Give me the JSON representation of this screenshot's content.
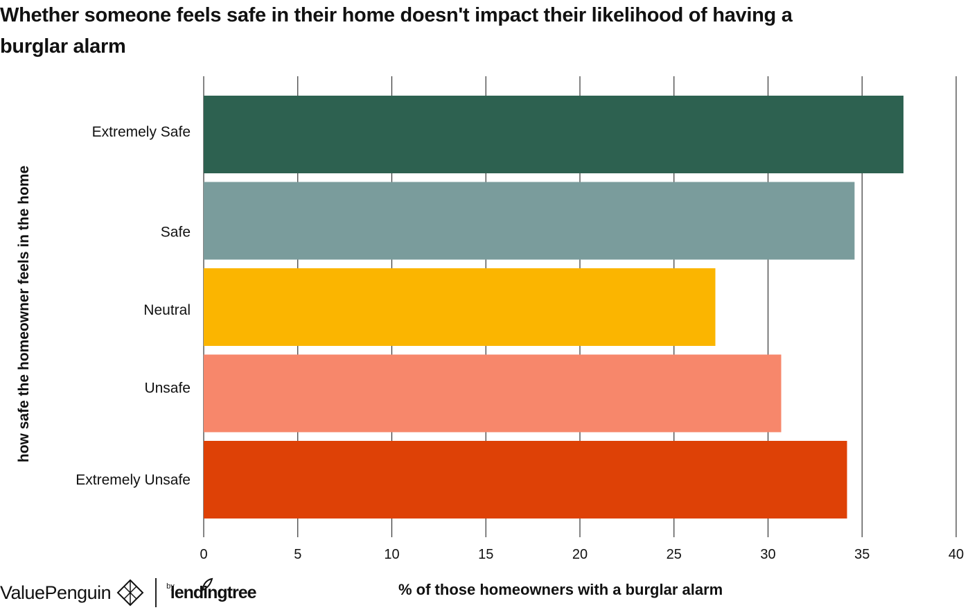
{
  "title": "Whether someone feels safe in their home doesn't impact their likelihood of having a burglar alarm",
  "brand": {
    "left": "ValuePenguin",
    "by": "by",
    "right": "lendingtree"
  },
  "colors": {
    "extremely_safe": "#2d6150",
    "safe": "#7a9c9c",
    "neutral": "#fbb500",
    "unsafe": "#f7876b",
    "extremely_unsafe": "#de4106",
    "grid": "#333333"
  },
  "chart_data": {
    "type": "bar",
    "orientation": "horizontal",
    "title": "Whether someone feels safe in their home doesn't impact their likelihood of having a burglar alarm",
    "xlabel": "% of those homeowners with a burglar alarm",
    "ylabel": "how safe the homeowner feels in the home",
    "categories": [
      "Extremely Safe",
      "Safe",
      "Neutral",
      "Unsafe",
      "Extremely Unsafe"
    ],
    "values": [
      37.2,
      34.6,
      27.2,
      30.7,
      34.2
    ],
    "bar_colors": [
      "#2d6150",
      "#7a9c9c",
      "#fbb500",
      "#f7876b",
      "#de4106"
    ],
    "xlim": [
      0,
      40
    ],
    "xticks": [
      0,
      5,
      10,
      15,
      20,
      25,
      30,
      35,
      40
    ],
    "grid": true,
    "legend": "none"
  }
}
